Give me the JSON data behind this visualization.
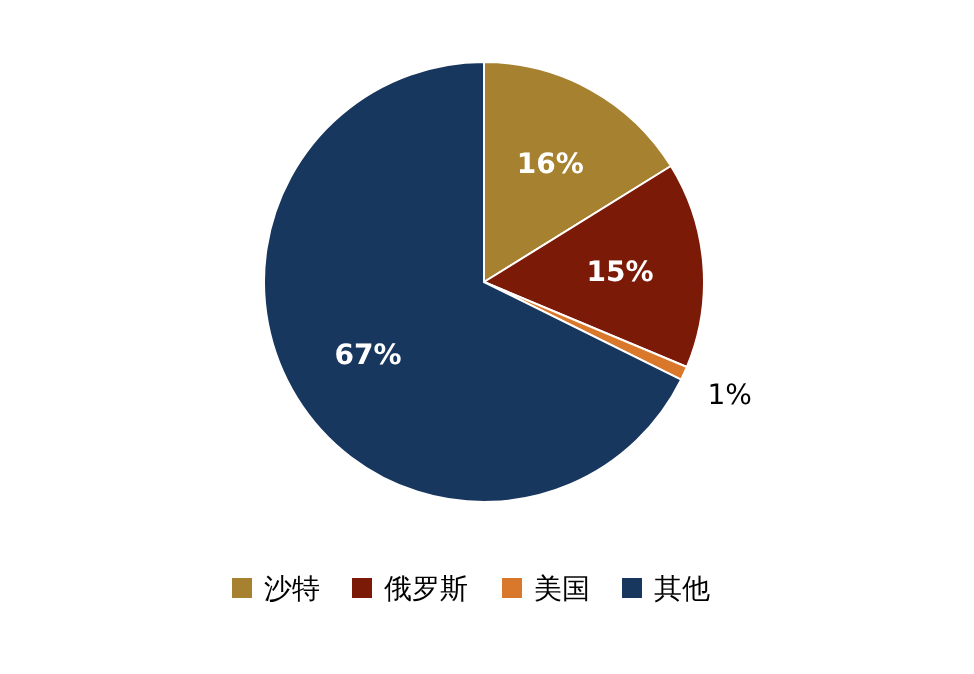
{
  "chart_data": {
    "type": "pie",
    "categories": [
      "沙特",
      "俄罗斯",
      "美国",
      "其他"
    ],
    "values": [
      16,
      15,
      1,
      67
    ],
    "colors": [
      "#a6812f",
      "#7c1a08",
      "#d9782a",
      "#17375e"
    ],
    "value_labels": [
      "16%",
      "15%",
      "1%",
      "67%"
    ],
    "legend": "bottom"
  }
}
